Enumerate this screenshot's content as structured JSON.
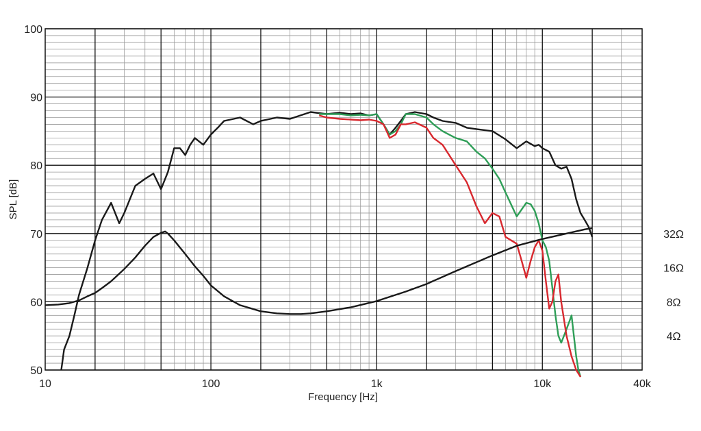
{
  "chart_data": {
    "type": "line",
    "title": "",
    "xlabel": "Frequency [Hz]",
    "ylabel": "SPL [dB]",
    "x_scale": "log",
    "xlim": [
      10,
      40000
    ],
    "ylim": [
      50,
      100
    ],
    "grid": true,
    "x_tick_labels": [
      {
        "value": 10,
        "label": "10"
      },
      {
        "value": 100,
        "label": "100"
      },
      {
        "value": 1000,
        "label": "1k"
      },
      {
        "value": 10000,
        "label": "10k"
      },
      {
        "value": 40000,
        "label": "40k"
      }
    ],
    "y_tick_labels": [
      {
        "value": 50,
        "label": "50"
      },
      {
        "value": 60,
        "label": "60"
      },
      {
        "value": 70,
        "label": "70"
      },
      {
        "value": 80,
        "label": "80"
      },
      {
        "value": 90,
        "label": "90"
      },
      {
        "value": 100,
        "label": "100"
      }
    ],
    "right_axis_labels": [
      {
        "value": 70,
        "label": "32Ω"
      },
      {
        "value": 65,
        "label": "16Ω"
      },
      {
        "value": 60,
        "label": "8Ω"
      },
      {
        "value": 55,
        "label": "4Ω"
      }
    ],
    "series": [
      {
        "color": "#1a1a1a",
        "x": [
          12.5,
          13,
          14,
          15,
          16,
          18,
          20,
          22,
          25,
          28,
          30,
          35,
          40,
          45,
          50,
          55,
          60,
          65,
          70,
          75,
          80,
          90,
          100,
          110,
          120,
          150,
          180,
          200,
          250,
          300,
          400,
          500,
          600,
          700,
          800,
          900,
          1000,
          1100,
          1200,
          1300,
          1400,
          1500,
          1700,
          2000,
          2200,
          2500,
          3000,
          3500,
          4000,
          5000,
          6000,
          7000,
          8000,
          9000,
          9500,
          10000,
          11000,
          12000,
          13000,
          14000,
          15000,
          16000,
          17000,
          18000,
          19000,
          20000
        ],
        "y": [
          50,
          53,
          55,
          58,
          61,
          65,
          69,
          72,
          74.5,
          71.5,
          73,
          77,
          78,
          78.8,
          76.5,
          79,
          82.5,
          82.5,
          81.5,
          83,
          84,
          83,
          84.5,
          85.5,
          86.5,
          87,
          86,
          86.5,
          87,
          86.8,
          87.8,
          87.5,
          87.7,
          87.5,
          87.6,
          87.3,
          87.5,
          86,
          84.5,
          85.5,
          86.5,
          87.5,
          87.8,
          87.5,
          87,
          86.5,
          86.2,
          85.5,
          85.3,
          85,
          83.8,
          82.5,
          83.5,
          82.8,
          83,
          82.5,
          82,
          80,
          79.5,
          79.8,
          78,
          75,
          73,
          72,
          71,
          69.5
        ]
      },
      {
        "color": "#2e9e57",
        "x": [
          450,
          500,
          600,
          700,
          800,
          900,
          1000,
          1100,
          1200,
          1300,
          1400,
          1500,
          1700,
          2000,
          2200,
          2500,
          3000,
          3500,
          4000,
          4500,
          5000,
          5500,
          6000,
          7000,
          8000,
          8500,
          9000,
          9500,
          10000,
          10500,
          11000,
          11500,
          12000,
          12500,
          13000,
          13500,
          14000,
          14500,
          15000,
          15500,
          16000,
          16500,
          17000
        ],
        "y": [
          87.5,
          87.5,
          87.5,
          87.3,
          87.4,
          87.3,
          87.5,
          86,
          84.5,
          85,
          86,
          87.5,
          87.5,
          87,
          86,
          85,
          84,
          83.5,
          82,
          81,
          79.5,
          78,
          76,
          72.5,
          74.5,
          74.3,
          73.3,
          71.5,
          69,
          68,
          66,
          62,
          58,
          55,
          54,
          55,
          56,
          57,
          58,
          55,
          52,
          50,
          49
        ]
      },
      {
        "color": "#d8282e",
        "x": [
          450,
          500,
          600,
          700,
          800,
          900,
          1000,
          1100,
          1200,
          1300,
          1400,
          1500,
          1700,
          2000,
          2200,
          2500,
          3000,
          3500,
          4000,
          4500,
          5000,
          5500,
          6000,
          7000,
          7500,
          8000,
          8500,
          9000,
          9500,
          10000,
          10500,
          11000,
          11500,
          12000,
          12500,
          13000,
          14000,
          15000,
          16000,
          17000
        ],
        "y": [
          87.3,
          87,
          86.8,
          86.7,
          86.6,
          86.7,
          86.5,
          86,
          84,
          84.5,
          86,
          86,
          86.3,
          85.5,
          84,
          83,
          80,
          77.5,
          74,
          71.5,
          73,
          72.5,
          69.5,
          68.5,
          66,
          63.5,
          66,
          68,
          69,
          67.5,
          63,
          59,
          60,
          63,
          64,
          60,
          55,
          52,
          50,
          49
        ]
      },
      {
        "color": "#1a1a1a",
        "x": [
          10,
          12,
          14,
          16,
          18,
          20,
          22,
          25,
          30,
          35,
          40,
          45,
          50,
          53,
          55,
          60,
          70,
          80,
          90,
          100,
          120,
          150,
          200,
          250,
          300,
          350,
          400,
          500,
          700,
          1000,
          1500,
          2000,
          3000,
          5000,
          7000,
          10000,
          14000,
          18000,
          20000
        ],
        "y": [
          59.5,
          59.6,
          59.8,
          60.2,
          60.8,
          61.3,
          62,
          63,
          64.8,
          66.5,
          68.2,
          69.5,
          70.1,
          70.3,
          70,
          69,
          67,
          65.2,
          63.8,
          62.4,
          60.8,
          59.5,
          58.6,
          58.3,
          58.2,
          58.2,
          58.3,
          58.6,
          59.2,
          60.1,
          61.5,
          62.6,
          64.5,
          66.8,
          68.2,
          69.2,
          70,
          70.6,
          70.8
        ]
      }
    ]
  }
}
